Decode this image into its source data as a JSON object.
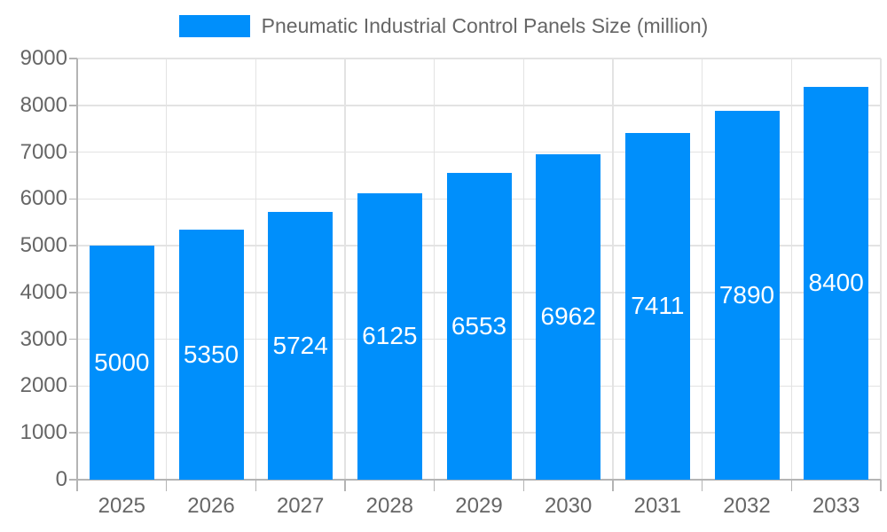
{
  "legend": {
    "label": "Pneumatic Industrial Control Panels Size (million)"
  },
  "colors": {
    "bar": "#008FFB",
    "grid": "#e3e3e3",
    "axis": "#b4b4b4",
    "axis_text": "#666666",
    "value_label": "#ffffff",
    "background": "#ffffff"
  },
  "chart_data": {
    "type": "bar",
    "title": "Pneumatic Industrial Control Panels Size (million)",
    "categories": [
      "2025",
      "2026",
      "2027",
      "2028",
      "2029",
      "2030",
      "2031",
      "2032",
      "2033"
    ],
    "series": [
      {
        "name": "Pneumatic Industrial Control Panels Size (million)",
        "values": [
          5000,
          5350,
          5724,
          6125,
          6553,
          6962,
          7411,
          7890,
          8400
        ]
      }
    ],
    "xlabel": "",
    "ylabel": "",
    "ylim": [
      0,
      9000
    ],
    "y_tick_step": 1000,
    "y_tick_labels": [
      "0",
      "1000",
      "2000",
      "3000",
      "4000",
      "5000",
      "6000",
      "7000",
      "8000",
      "9000"
    ],
    "data_labels_inside_bars": true,
    "legend_position": "top-center",
    "grid": "both"
  }
}
